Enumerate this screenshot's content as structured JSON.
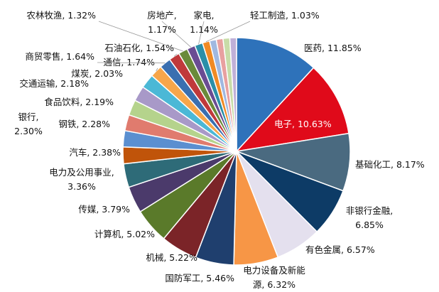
{
  "chart_data": {
    "type": "pie",
    "values": [
      11.85,
      10.63,
      8.17,
      6.85,
      6.57,
      6.32,
      5.46,
      5.22,
      5.02,
      3.79,
      3.36,
      2.38,
      2.3,
      2.28,
      2.19,
      2.18,
      2.03,
      1.74,
      1.64,
      1.54,
      1.32,
      1.17,
      1.14,
      1.03,
      0.96,
      0.95,
      0.96,
      0.95
    ],
    "value_labels": [
      "医药, 11.85%",
      "电子, 10.63%",
      "基础化工, 8.17%",
      "非银行金融,\n6.85%",
      "有色金属, 6.57%",
      "电力设备及新能\n源, 6.32%",
      "国防军工, 5.46%",
      "机械, 5.22%",
      "计算机, 5.02%",
      "传媒, 3.79%",
      "电力及公用事业,\n3.36%",
      "汽车, 2.38%",
      "银行,\n2.30%",
      "钢铁, 2.28%",
      "食品饮料, 2.19%",
      "交通运输, 2.18%",
      "煤炭, 2.03%",
      "通信, 1.74%",
      "商贸零售, 1.64%",
      "石油石化, 1.54%",
      "农林牧渔, 1.32%",
      "房地产,\n1.17%",
      "家电,\n1.14%",
      "轻工制造, 1.03%",
      null,
      null,
      null,
      null
    ],
    "colors": [
      "#2e72ba",
      "#e00a1a",
      "#4a6a80",
      "#0d3b66",
      "#e4e0ee",
      "#f79646",
      "#1f3f6e",
      "#7b2428",
      "#5a7a2a",
      "#4b3a6b",
      "#2e6b78",
      "#c0540a",
      "#5b8fd0",
      "#e07b6e",
      "#b5d38c",
      "#a899c8",
      "#4bb8d6",
      "#f7a64a",
      "#3a6fb0",
      "#c0393b",
      "#6a8a3a",
      "#6a4c93",
      "#2b8fa8",
      "#f08a24",
      "#a0b8e0",
      "#e8a0a0",
      "#c8dca8",
      "#c0b0d8"
    ]
  }
}
